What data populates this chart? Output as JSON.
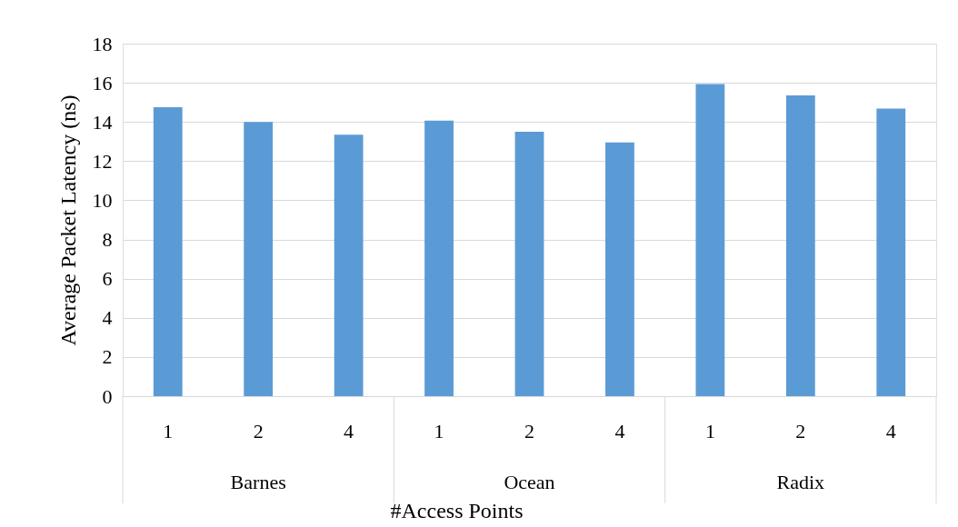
{
  "chart_data": {
    "type": "bar",
    "xlabel": "#Access Points",
    "ylabel": "Average Packet Latency (ns)",
    "categories": [
      "1",
      "2",
      "4",
      "1",
      "2",
      "4",
      "1",
      "2",
      "4"
    ],
    "annotations": [
      "Barnes",
      "Ocean",
      "Radix"
    ],
    "values": [
      14.75,
      14.0,
      13.35,
      14.07,
      13.5,
      12.95,
      15.93,
      15.35,
      14.68
    ],
    "color": "#5b9bd5",
    "ylim": [
      0,
      18
    ],
    "yticks": [
      0,
      2,
      4,
      6,
      8,
      10,
      12,
      14,
      16,
      18
    ],
    "grid": "y"
  }
}
